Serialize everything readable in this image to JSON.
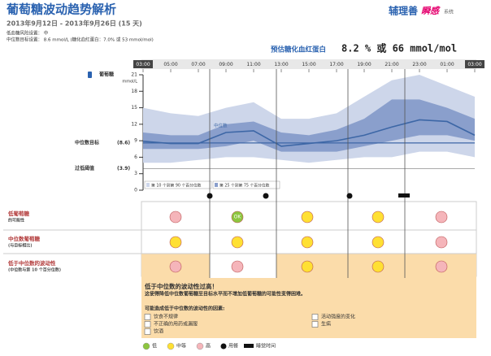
{
  "header": {
    "title": "葡萄糖波动趋势解析",
    "date_range": "2013年9月12日 - 2013年9月26日 (15 天)",
    "setting_low": "低血糖风险设置：  中",
    "setting_target": "中位数目标设置：  8.6 mmol/L (糖化血红蛋白：7.0% 或 53 mmol/mol)",
    "logo": "辅理善",
    "logo_accent": "瞬感",
    "logo_tail": "系统"
  },
  "estimated_a1c": {
    "label": "预估糖化血红蛋白",
    "value": "8.2 % 或 66 mmol/mol"
  },
  "chart_data": {
    "type": "band",
    "y_label": "葡萄糖",
    "y_unit": "mmol/L",
    "x": [
      3,
      5,
      7,
      9,
      11,
      13,
      15,
      17,
      19,
      21,
      23,
      25,
      27
    ],
    "xlim": [
      3,
      27
    ],
    "xticks": [
      {
        "value": 3,
        "label": "03:00"
      },
      {
        "value": 5,
        "label": "05:00"
      },
      {
        "value": 7,
        "label": "07:00"
      },
      {
        "value": 9,
        "label": "09:00"
      },
      {
        "value": 11,
        "label": "11:00"
      },
      {
        "value": 13,
        "label": "13:00"
      },
      {
        "value": 15,
        "label": "15:00"
      },
      {
        "value": 17,
        "label": "17:00"
      },
      {
        "value": 19,
        "label": "19:00"
      },
      {
        "value": 21,
        "label": "21:00"
      },
      {
        "value": 23,
        "label": "23:00"
      },
      {
        "value": 25,
        "label": "01:00"
      },
      {
        "value": 27,
        "label": "03:00"
      }
    ],
    "ylim": [
      0,
      21
    ],
    "yticks": [
      0,
      3,
      6,
      9,
      12,
      15,
      18,
      21
    ],
    "series": [
      {
        "name": "第 10 个到第 90 个百分位数",
        "color": "#cdd6ea",
        "upper": [
          15,
          14,
          13.5,
          15,
          16,
          13,
          13,
          14,
          17,
          20,
          21,
          19,
          17
        ],
        "lower": [
          5,
          5,
          5.5,
          6,
          6,
          5.5,
          5,
          5.5,
          6,
          6,
          7,
          7,
          6
        ]
      },
      {
        "name": "第 25 个到第 75 个百分位数",
        "color": "#8a9fcc",
        "upper": [
          10.5,
          10,
          10,
          12,
          12.5,
          10.5,
          10,
          11,
          13,
          16.5,
          16.5,
          15,
          13
        ],
        "lower": [
          7.5,
          7.5,
          7.5,
          8,
          9,
          7,
          7,
          7,
          8,
          9,
          10,
          10,
          9
        ]
      },
      {
        "name": "中位数",
        "color": "#3d67a6",
        "values": [
          8.9,
          8.5,
          8.5,
          10.5,
          10.8,
          8,
          8.5,
          9,
          10,
          11.5,
          12.8,
          12.5,
          10
        ]
      }
    ],
    "reference_lines": [
      {
        "label": "中位数目标",
        "value_label": "(8.6)",
        "value": 8.6,
        "color": "#3d67a6"
      },
      {
        "label": "过低阈值",
        "value_label": "(3.9)",
        "value": 3.9,
        "color": "#555555"
      }
    ]
  },
  "risk_table": {
    "rows": [
      {
        "label": [
          "低葡萄糖",
          "的可能性"
        ],
        "cells": [
          {
            "color": "#f5b5ba"
          },
          {
            "color": "#8dc63f",
            "label": "OK"
          },
          {
            "color": "#ffe033"
          },
          {
            "color": "#ffe033"
          },
          {
            "color": "#f5b5ba"
          }
        ]
      },
      {
        "label": [
          "中位数葡萄糖",
          "(与目标相比)"
        ],
        "cells": [
          {
            "color": "#ffe033"
          },
          {
            "color": "#ffe033"
          },
          {
            "color": "#ffe033"
          },
          {
            "color": "#ffe033"
          },
          {
            "color": "#f5b5ba"
          }
        ]
      },
      {
        "label": [
          "低于中位数的波动性",
          "(中位数与第 10 个百分位数)"
        ],
        "cells": [
          {
            "color": "#f5b5ba"
          },
          {
            "color": "#f5b5ba"
          },
          {
            "color": "#ffe033"
          },
          {
            "color": "#ffe033"
          },
          {
            "color": "#f5b5ba"
          }
        ]
      }
    ]
  },
  "notice": {
    "title": "低于中位数的波动性过高！",
    "text": "这使得降低中位数葡萄糖至目标水平而不增加低葡萄糖的可能性变得困难。",
    "factors_title": "可能造成低于中位数的波动性的因素:",
    "factors_left": [
      "饮食不规律",
      "不正确的用药或漏服",
      "饮酒"
    ],
    "factors_right": [
      "活动强度的变化",
      "生病"
    ]
  },
  "legend": {
    "low": "低",
    "medium": "中等",
    "high": "高",
    "meal": "用餐",
    "sleep": "睡觉时间"
  }
}
